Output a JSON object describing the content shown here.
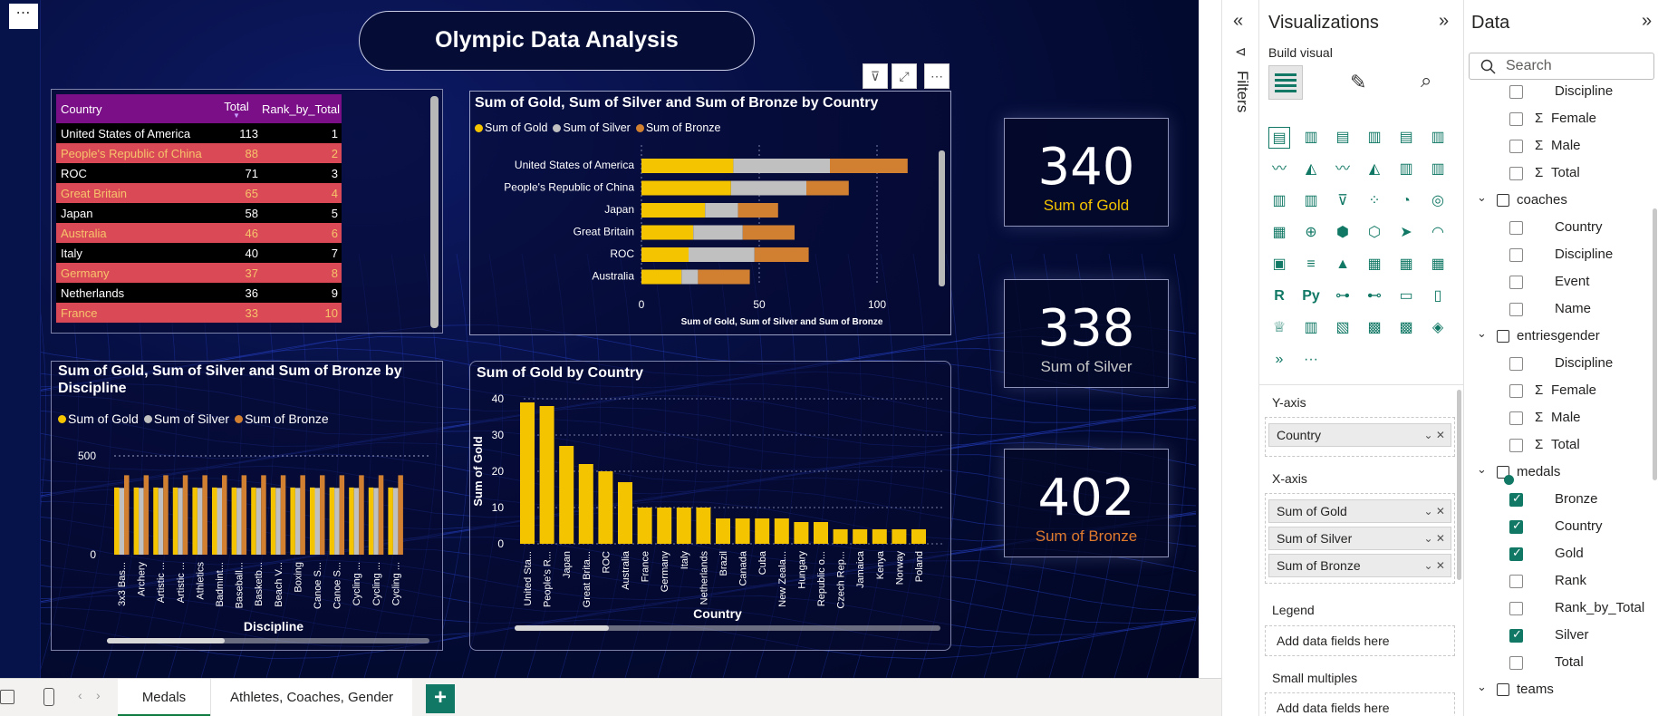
{
  "report": {
    "title": "Olympic Data Analysis",
    "more_label": "⋯"
  },
  "medal_table": {
    "headers": [
      "Country",
      "Total",
      "Rank_by_Total"
    ],
    "rows": [
      {
        "country": "United States of America",
        "total": "113",
        "rank": "1"
      },
      {
        "country": "People's Republic of China",
        "total": "88",
        "rank": "2"
      },
      {
        "country": "ROC",
        "total": "71",
        "rank": "3"
      },
      {
        "country": "Great Britain",
        "total": "65",
        "rank": "4"
      },
      {
        "country": "Japan",
        "total": "58",
        "rank": "5"
      },
      {
        "country": "Australia",
        "total": "46",
        "rank": "6"
      },
      {
        "country": "Italy",
        "total": "40",
        "rank": "7"
      },
      {
        "country": "Germany",
        "total": "37",
        "rank": "8"
      },
      {
        "country": "Netherlands",
        "total": "36",
        "rank": "9"
      },
      {
        "country": "France",
        "total": "33",
        "rank": "10"
      }
    ]
  },
  "cards": [
    {
      "value": "340",
      "label": "Sum of Gold",
      "color": "#f5c400"
    },
    {
      "value": "338",
      "label": "Sum of Silver",
      "color": "#c8c8c8"
    },
    {
      "value": "402",
      "label": "Sum of Bronze",
      "color": "#e07a2d"
    }
  ],
  "colors": {
    "gold": "#f5c400",
    "silver": "#c0c0c0",
    "bronze": "#d08030"
  },
  "chart_data": [
    {
      "type": "bar",
      "orientation": "horizontal-stacked",
      "title": "Sum of Gold, Sum of Silver and Sum of Bronze by Country",
      "xlabel": "Sum of Gold, Sum of Silver and Sum of Bronze",
      "ylabel": "",
      "xlim": [
        0,
        120
      ],
      "xticks": [
        "0",
        "50",
        "100"
      ],
      "categories": [
        "United States of America",
        "People's Republic of China",
        "Japan",
        "Great Britain",
        "ROC",
        "Australia"
      ],
      "series": [
        {
          "name": "Sum of Gold",
          "values": [
            39,
            38,
            27,
            22,
            20,
            17
          ]
        },
        {
          "name": "Sum of Silver",
          "values": [
            41,
            32,
            14,
            21,
            28,
            7
          ]
        },
        {
          "name": "Sum of Bronze",
          "values": [
            33,
            18,
            17,
            22,
            23,
            22
          ]
        }
      ],
      "legend": "top-left",
      "grid": true
    },
    {
      "type": "bar",
      "orientation": "vertical-clustered",
      "title": "Sum of Gold, Sum of Silver and Sum of Bronze by Discipline",
      "xlabel": "Discipline",
      "ylabel": "",
      "ylim": [
        0,
        500
      ],
      "yticks": [
        "0",
        "500"
      ],
      "categories": [
        "3x3 Bas...",
        "Archery",
        "Artistic ...",
        "Artistic ...",
        "Athletics",
        "Badmint...",
        "Baseball...",
        "Basketb...",
        "Beach V...",
        "Boxing",
        "Canoe S...",
        "Canoe S...",
        "Cycling ...",
        "Cycling ...",
        "Cycling ..."
      ],
      "series": [
        {
          "name": "Sum of Gold",
          "values": [
            340,
            340,
            340,
            340,
            340,
            340,
            340,
            340,
            340,
            340,
            340,
            340,
            340,
            340,
            340
          ]
        },
        {
          "name": "Sum of Silver",
          "values": [
            338,
            338,
            338,
            338,
            338,
            338,
            338,
            338,
            338,
            338,
            338,
            338,
            338,
            338,
            338
          ]
        },
        {
          "name": "Sum of Bronze",
          "values": [
            402,
            402,
            402,
            402,
            402,
            402,
            402,
            402,
            402,
            402,
            402,
            402,
            402,
            402,
            402
          ]
        }
      ],
      "legend": "top-left",
      "grid": true
    },
    {
      "type": "bar",
      "orientation": "vertical",
      "title": "Sum of Gold by Country",
      "xlabel": "Country",
      "ylabel": "Sum of Gold",
      "ylim": [
        0,
        40
      ],
      "yticks": [
        "0",
        "10",
        "20",
        "30",
        "40"
      ],
      "categories": [
        "United Sta...",
        "People's R...",
        "Japan",
        "Great Brita...",
        "ROC",
        "Australia",
        "France",
        "Germany",
        "Italy",
        "Netherlands",
        "Brazil",
        "Canada",
        "Cuba",
        "New Zeala...",
        "Hungary",
        "Republic o...",
        "Czech Rep...",
        "Jamaica",
        "Kenya",
        "Norway",
        "Poland"
      ],
      "values": [
        39,
        38,
        27,
        22,
        20,
        17,
        10,
        10,
        10,
        10,
        7,
        7,
        7,
        7,
        6,
        6,
        4,
        4,
        4,
        4,
        4
      ],
      "grid": true
    }
  ],
  "tabs": {
    "medals": "Medals",
    "athletes": "Athletes, Coaches, Gender",
    "add": "+"
  },
  "filters_pane": {
    "label": "Filters"
  },
  "viz_pane": {
    "title": "Visualizations",
    "build": "Build visual",
    "y_axis_label": "Y-axis",
    "y_axis_fields": [
      "Country"
    ],
    "x_axis_label": "X-axis",
    "x_axis_fields": [
      "Sum of Gold",
      "Sum of Silver",
      "Sum of Bronze"
    ],
    "legend_label": "Legend",
    "legend_placeholder": "Add data fields here",
    "small_multiples_label": "Small multiples",
    "small_multiples_placeholder": "Add data fields here",
    "icon_r": "R",
    "icon_py": "Py",
    "icon_more": "···"
  },
  "data_pane": {
    "title": "Data",
    "search_placeholder": "Search",
    "items": [
      {
        "kind": "field",
        "label": "Discipline",
        "sigma": false,
        "checked": false
      },
      {
        "kind": "field",
        "label": "Female",
        "sigma": true,
        "checked": false
      },
      {
        "kind": "field",
        "label": "Male",
        "sigma": true,
        "checked": false
      },
      {
        "kind": "field",
        "label": "Total",
        "sigma": true,
        "checked": false
      },
      {
        "kind": "table",
        "label": "coaches"
      },
      {
        "kind": "field",
        "label": "Country",
        "sigma": false,
        "checked": false
      },
      {
        "kind": "field",
        "label": "Discipline",
        "sigma": false,
        "checked": false
      },
      {
        "kind": "field",
        "label": "Event",
        "sigma": false,
        "checked": false
      },
      {
        "kind": "field",
        "label": "Name",
        "sigma": false,
        "checked": false
      },
      {
        "kind": "table",
        "label": "entriesgender"
      },
      {
        "kind": "field",
        "label": "Discipline",
        "sigma": false,
        "checked": false
      },
      {
        "kind": "field",
        "label": "Female",
        "sigma": true,
        "checked": false
      },
      {
        "kind": "field",
        "label": "Male",
        "sigma": true,
        "checked": false
      },
      {
        "kind": "field",
        "label": "Total",
        "sigma": true,
        "checked": false
      },
      {
        "kind": "table",
        "label": "medals"
      },
      {
        "kind": "field",
        "label": "Bronze",
        "sigma": false,
        "checked": true
      },
      {
        "kind": "field",
        "label": "Country",
        "sigma": false,
        "checked": true
      },
      {
        "kind": "field",
        "label": "Gold",
        "sigma": false,
        "checked": true
      },
      {
        "kind": "field",
        "label": "Rank",
        "sigma": false,
        "checked": false
      },
      {
        "kind": "field",
        "label": "Rank_by_Total",
        "sigma": false,
        "checked": false
      },
      {
        "kind": "field",
        "label": "Silver",
        "sigma": false,
        "checked": true
      },
      {
        "kind": "field",
        "label": "Total",
        "sigma": false,
        "checked": false
      },
      {
        "kind": "table",
        "label": "teams"
      }
    ]
  }
}
